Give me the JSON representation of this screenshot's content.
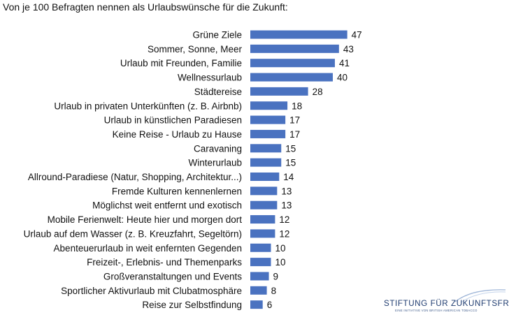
{
  "chart_data": {
    "type": "bar",
    "orientation": "horizontal",
    "title": "Von je 100 Befragten nennen als Urlaubswünsche für die Zukunft:",
    "categories": [
      "Grüne Ziele",
      "Sommer, Sonne, Meer",
      "Urlaub mit Freunden, Familie",
      "Wellnessurlaub",
      "Städtereise",
      "Urlaub in privaten Unterkünften (z. B. Airbnb)",
      "Urlaub in künstlichen Paradiesen",
      "Keine Reise - Urlaub zu Hause",
      "Caravaning",
      "Winterurlaub",
      "Allround-Paradiese (Natur, Shopping, Architektur...)",
      "Fremde Kulturen kennenlernen",
      "Möglichst weit entfernt und exotisch",
      "Mobile Ferienwelt: Heute hier und morgen dort",
      "Urlaub auf dem Wasser (z. B. Kreuzfahrt, Segeltörn)",
      "Abenteuerurlaub in weit enfernten Gegenden",
      "Freizeit-, Erlebnis- und Themenparks",
      "Großveranstaltungen und Events",
      "Sportlicher Aktivurlaub mit Clubatmosphäre",
      "Reise zur Selbstfindung"
    ],
    "values": [
      47,
      43,
      41,
      40,
      28,
      18,
      17,
      17,
      15,
      15,
      14,
      13,
      13,
      12,
      12,
      10,
      10,
      9,
      8,
      6
    ],
    "xlim": [
      0,
      50
    ],
    "grid": false,
    "data_labels": true,
    "bar_color": "#4a72c0"
  },
  "logo": {
    "name": "STIFTUNG FÜR ZUKUNFTSFRAGEN",
    "tagline": "EINE INITIATIVE VON BRITISH AMERICAN TOBACCO"
  }
}
